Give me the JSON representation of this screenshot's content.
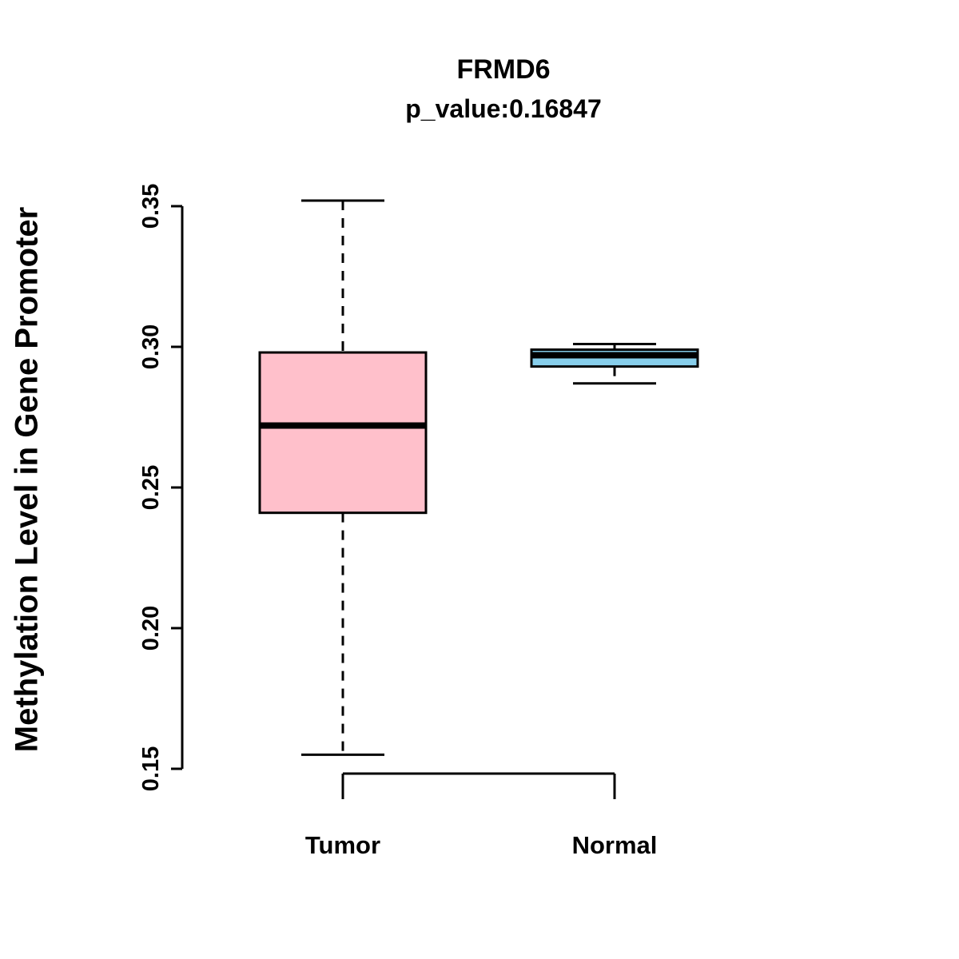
{
  "chart_data": {
    "type": "boxplot",
    "title": "FRMD6",
    "subtitle": "p_value:0.16847",
    "ylabel": "Methylation Level in Gene Promoter",
    "xlabel": "",
    "ylim": [
      0.15,
      0.35
    ],
    "yticks": [
      0.15,
      0.2,
      0.25,
      0.3,
      0.35
    ],
    "grid": "off",
    "legend": "none",
    "groups": [
      {
        "label": "Tumor",
        "color": "#FFC0CB",
        "whisker_low": 0.155,
        "q1": 0.241,
        "median": 0.272,
        "q3": 0.298,
        "whisker_high": 0.352
      },
      {
        "label": "Normal",
        "color": "#87CEEB",
        "whisker_low": 0.287,
        "q1": 0.293,
        "median": 0.297,
        "q3": 0.299,
        "whisker_high": 0.301
      }
    ]
  }
}
